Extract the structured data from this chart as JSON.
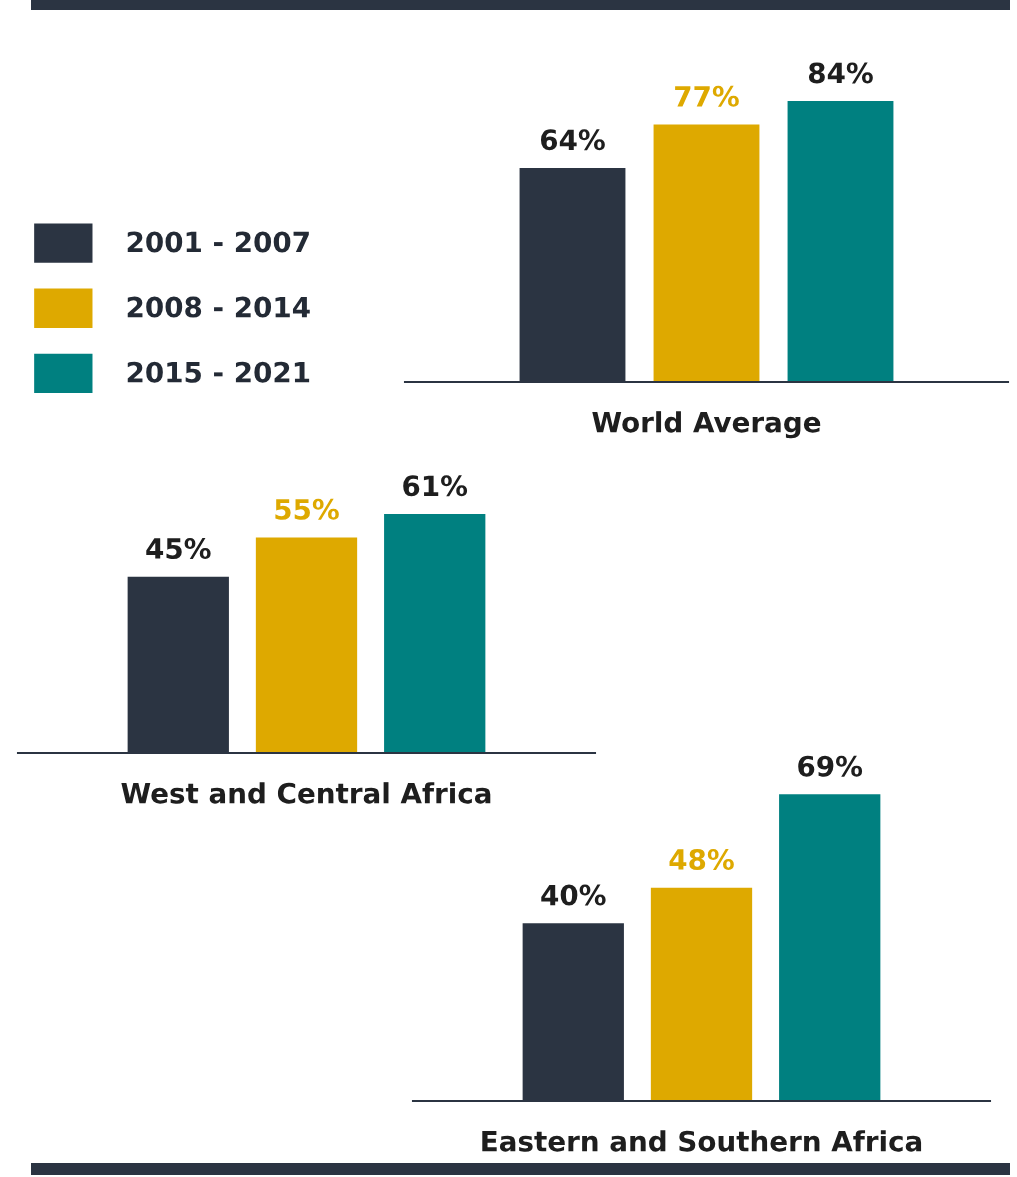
{
  "chart_data": [
    {
      "type": "bar",
      "xlabel": "World Average",
      "categories": [
        null
      ],
      "tick_labels": false,
      "legend": "left",
      "series": [
        {
          "name": "2001 - 2007",
          "color": "#2b3442",
          "values": [
            64
          ],
          "value_labels": [
            "64%"
          ]
        },
        {
          "name": "2008 - 2014",
          "color": "#dea900",
          "values": [
            77
          ],
          "value_labels": [
            "77%"
          ]
        },
        {
          "name": "2015 - 2021",
          "color": "#008080",
          "values": [
            84
          ],
          "value_labels": [
            "84%"
          ]
        }
      ]
    },
    {
      "type": "bar",
      "xlabel": "West and Central Africa",
      "categories": [
        null
      ],
      "tick_labels": false,
      "series": [
        {
          "color": "#2b3442",
          "values": [
            45
          ],
          "value_labels": [
            "45%"
          ]
        },
        {
          "color": "#dea900",
          "values": [
            55
          ],
          "value_labels": [
            "55%"
          ]
        },
        {
          "color": "#008080",
          "values": [
            61
          ],
          "value_labels": [
            "61%"
          ]
        }
      ]
    },
    {
      "type": "bar",
      "xlabel": "Eastern and Southern Africa",
      "categories": [
        null
      ],
      "tick_labels": false,
      "series": [
        {
          "color": "#2b3442",
          "values": [
            40
          ],
          "value_labels": [
            "40%"
          ]
        },
        {
          "color": "#dea900",
          "values": [
            48
          ],
          "value_labels": [
            "48%"
          ]
        },
        {
          "color": "#008080",
          "values": [
            69
          ],
          "value_labels": [
            "69%"
          ]
        }
      ]
    }
  ]
}
